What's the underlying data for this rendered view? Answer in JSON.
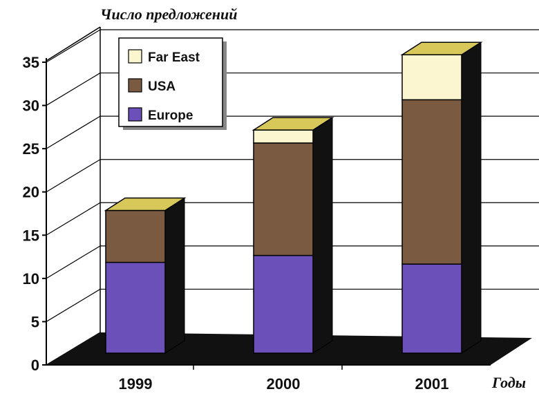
{
  "chart_data": {
    "type": "bar",
    "stacked": true,
    "three_d": true,
    "ylabel": "Число предложений",
    "xlabel": "Годы",
    "categories": [
      "1999",
      "2000",
      "2001"
    ],
    "series": [
      {
        "name": "Europe",
        "values": [
          10.5,
          11.3,
          10.3
        ],
        "color": "#6a50b8"
      },
      {
        "name": "USA",
        "values": [
          6.0,
          13.0,
          19.0
        ],
        "color": "#7a5a40"
      },
      {
        "name": "Far East",
        "values": [
          0,
          1.5,
          5.2
        ],
        "color": "#fbf6d0"
      }
    ],
    "ylim": [
      0,
      35
    ],
    "yticks": [
      0,
      5,
      10,
      15,
      20,
      25,
      30,
      35
    ],
    "grid": true,
    "legend": "top-left",
    "colors": {
      "top_face": "#d8c85a",
      "side_face": "#111111",
      "floor": "#111111",
      "wall": "#ffffff"
    }
  }
}
